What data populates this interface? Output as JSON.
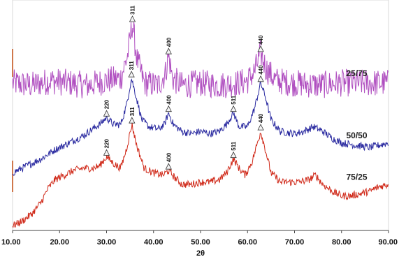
{
  "chart_data": {
    "type": "line",
    "xlabel": "2θ",
    "xlim": [
      10,
      90
    ],
    "x_ticks": [
      "10.00",
      "20.00",
      "30.00",
      "40.00",
      "50.00",
      "60.00",
      "70.00",
      "80.00",
      "90.00"
    ],
    "series": [
      {
        "name": "25/75",
        "color": "#b04fc0",
        "points": [
          [
            10,
            64
          ],
          [
            14,
            63
          ],
          [
            18,
            65
          ],
          [
            22,
            64
          ],
          [
            26,
            63
          ],
          [
            30,
            65
          ],
          [
            33,
            66
          ],
          [
            34.5,
            76
          ],
          [
            35.5,
            90
          ],
          [
            36.5,
            74
          ],
          [
            38,
            64
          ],
          [
            41,
            63
          ],
          [
            42.5,
            68
          ],
          [
            43.2,
            76
          ],
          [
            44,
            66
          ],
          [
            46,
            63
          ],
          [
            50,
            64
          ],
          [
            54,
            63
          ],
          [
            58,
            64
          ],
          [
            60,
            65
          ],
          [
            61.5,
            69
          ],
          [
            62.8,
            77
          ],
          [
            64,
            70
          ],
          [
            66,
            65
          ],
          [
            70,
            64
          ],
          [
            75,
            63
          ],
          [
            80,
            64
          ],
          [
            85,
            64
          ],
          [
            90,
            64
          ]
        ],
        "peaks": [
          {
            "x": 35.5,
            "y": 90,
            "label": "311"
          },
          {
            "x": 43.2,
            "y": 76,
            "label": "400"
          },
          {
            "x": 62.8,
            "y": 77,
            "label": "440"
          }
        ]
      },
      {
        "name": "50/50",
        "color": "#2a2aa0",
        "points": [
          [
            10,
            25
          ],
          [
            13,
            28
          ],
          [
            16,
            31
          ],
          [
            19,
            35
          ],
          [
            22,
            38
          ],
          [
            25,
            41
          ],
          [
            27,
            44
          ],
          [
            28.5,
            46
          ],
          [
            30,
            49
          ],
          [
            31.5,
            46
          ],
          [
            33,
            46
          ],
          [
            34.2,
            54
          ],
          [
            35.3,
            66
          ],
          [
            36.3,
            58
          ],
          [
            37.5,
            48
          ],
          [
            39,
            45
          ],
          [
            41,
            44
          ],
          [
            42.3,
            46
          ],
          [
            43.2,
            51
          ],
          [
            44.2,
            46
          ],
          [
            46,
            43
          ],
          [
            48,
            42
          ],
          [
            50,
            43
          ],
          [
            52,
            42
          ],
          [
            54,
            43
          ],
          [
            55.5,
            46
          ],
          [
            57,
            51
          ],
          [
            58.2,
            45
          ],
          [
            60,
            45
          ],
          [
            61.5,
            53
          ],
          [
            62.8,
            64
          ],
          [
            63.8,
            58
          ],
          [
            65,
            48
          ],
          [
            67,
            43
          ],
          [
            70,
            42
          ],
          [
            72,
            43
          ],
          [
            74,
            45
          ],
          [
            76,
            43
          ],
          [
            78,
            40
          ],
          [
            80,
            38
          ],
          [
            83,
            37
          ],
          [
            86,
            36
          ],
          [
            88,
            37
          ],
          [
            90,
            38
          ]
        ],
        "peaks": [
          {
            "x": 30,
            "y": 49,
            "label": "220"
          },
          {
            "x": 35.3,
            "y": 66,
            "label": "311"
          },
          {
            "x": 43.2,
            "y": 51,
            "label": "400"
          },
          {
            "x": 57,
            "y": 51,
            "label": "511"
          },
          {
            "x": 62.8,
            "y": 64,
            "label": "440"
          }
        ]
      },
      {
        "name": "75/25",
        "color": "#d02a1a",
        "points": [
          [
            10,
            2
          ],
          [
            12,
            4
          ],
          [
            14,
            7
          ],
          [
            16,
            12
          ],
          [
            17.5,
            18
          ],
          [
            19,
            22
          ],
          [
            21,
            24
          ],
          [
            23,
            26
          ],
          [
            25,
            27
          ],
          [
            27,
            27
          ],
          [
            28.5,
            28
          ],
          [
            30,
            32
          ],
          [
            31.5,
            29
          ],
          [
            33,
            27
          ],
          [
            34.2,
            35
          ],
          [
            35.4,
            46
          ],
          [
            36.4,
            37
          ],
          [
            38,
            27
          ],
          [
            40,
            25
          ],
          [
            42,
            24
          ],
          [
            43.2,
            26
          ],
          [
            44.5,
            23
          ],
          [
            46,
            20
          ],
          [
            48,
            20
          ],
          [
            50,
            21
          ],
          [
            52,
            21
          ],
          [
            54,
            22
          ],
          [
            55.5,
            25
          ],
          [
            57,
            31
          ],
          [
            58.2,
            27
          ],
          [
            59.5,
            24
          ],
          [
            61,
            30
          ],
          [
            62.8,
            43
          ],
          [
            63.8,
            35
          ],
          [
            65,
            25
          ],
          [
            67,
            21
          ],
          [
            69,
            21
          ],
          [
            71,
            21
          ],
          [
            73,
            22
          ],
          [
            74.5,
            24
          ],
          [
            76,
            20
          ],
          [
            78,
            17
          ],
          [
            80,
            15
          ],
          [
            82,
            15
          ],
          [
            84,
            16
          ],
          [
            86,
            17
          ],
          [
            88,
            19
          ],
          [
            90,
            20
          ]
        ],
        "peaks": [
          {
            "x": 30,
            "y": 32,
            "label": "220"
          },
          {
            "x": 35.4,
            "y": 46,
            "label": "311"
          },
          {
            "x": 43.2,
            "y": 26,
            "label": "400"
          },
          {
            "x": 57,
            "y": 31,
            "label": "511"
          },
          {
            "x": 62.8,
            "y": 43,
            "label": "440"
          }
        ]
      }
    ]
  }
}
